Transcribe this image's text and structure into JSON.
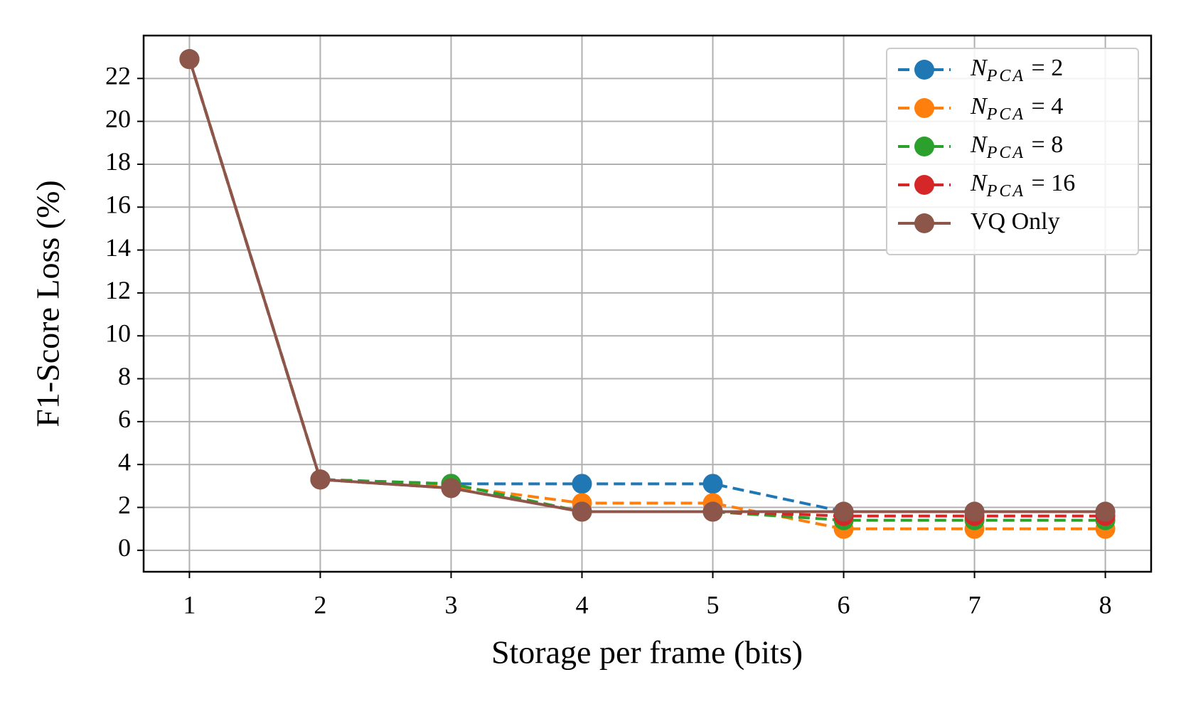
{
  "chart_data": {
    "type": "line",
    "xlabel": "Storage per frame (bits)",
    "ylabel": "F1-Score Loss (%)",
    "x": [
      1,
      2,
      3,
      4,
      5,
      6,
      7,
      8
    ],
    "series": [
      {
        "name": "N_PCA = 2",
        "color": "#1f77b4",
        "linestyle": "dashed",
        "values": [
          22.9,
          3.3,
          3.1,
          3.1,
          3.1,
          1.8,
          1.8,
          1.8
        ]
      },
      {
        "name": "N_PCA = 4",
        "color": "#ff7f0e",
        "linestyle": "dashed",
        "values": [
          22.9,
          3.3,
          3.0,
          2.2,
          2.2,
          1.0,
          1.0,
          1.0
        ]
      },
      {
        "name": "N_PCA = 8",
        "color": "#2ca02c",
        "linestyle": "dashed",
        "values": [
          22.9,
          3.3,
          3.1,
          1.8,
          1.8,
          1.4,
          1.4,
          1.4
        ]
      },
      {
        "name": "N_PCA = 16",
        "color": "#d62728",
        "linestyle": "dashed",
        "values": [
          22.9,
          3.3,
          2.9,
          1.8,
          1.8,
          1.6,
          1.6,
          1.6
        ]
      },
      {
        "name": "VQ Only",
        "color": "#8c564b",
        "linestyle": "solid",
        "values": [
          22.9,
          3.3,
          2.9,
          1.8,
          1.8,
          1.8,
          1.8,
          1.8
        ]
      }
    ],
    "xlim": [
      0.65,
      8.35
    ],
    "xticks": [
      1,
      2,
      3,
      4,
      5,
      6,
      7,
      8
    ],
    "ylim": [
      -1,
      24
    ],
    "yticks": [
      0,
      2,
      4,
      6,
      8,
      10,
      12,
      14,
      16,
      18,
      20,
      22
    ],
    "grid": true,
    "legend": "upper right"
  }
}
